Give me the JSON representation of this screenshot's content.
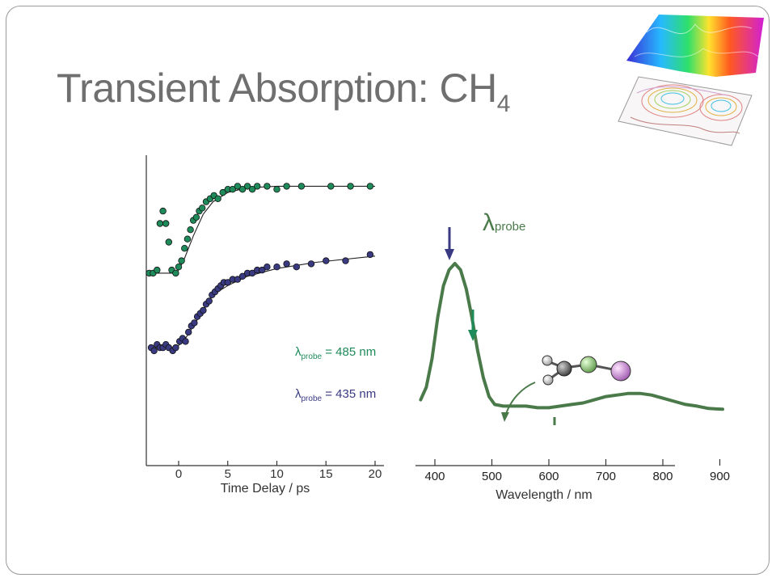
{
  "slide": {
    "title_main": "Transient Absorption: CH",
    "title_sub": "4"
  },
  "chart_data": [
    {
      "type": "scatter",
      "xlabel": "Time Delay / ps",
      "x_ticks": [
        "0",
        "5",
        "10",
        "15",
        "20"
      ],
      "xlim": [
        -3,
        20.5
      ],
      "series": [
        {
          "name": "λprobe = 485 nm",
          "label_symbol": "λ",
          "label_sub": "probe",
          "label_rest": " = 485 nm",
          "color": "#1f8a5a",
          "points": [
            [
              -3,
              0.62
            ],
            [
              -2.6,
              0.62
            ],
            [
              -2.2,
              0.63
            ],
            [
              -1.9,
              0.78
            ],
            [
              -1.6,
              0.82
            ],
            [
              -1.3,
              0.78
            ],
            [
              -1.0,
              0.72
            ],
            [
              -0.7,
              0.63
            ],
            [
              -0.3,
              0.62
            ],
            [
              0,
              0.64
            ],
            [
              0.3,
              0.66
            ],
            [
              0.6,
              0.7
            ],
            [
              0.9,
              0.73
            ],
            [
              1.2,
              0.76
            ],
            [
              1.5,
              0.79
            ],
            [
              1.8,
              0.8
            ],
            [
              2.1,
              0.82
            ],
            [
              2.4,
              0.83
            ],
            [
              2.8,
              0.85
            ],
            [
              3.2,
              0.86
            ],
            [
              3.6,
              0.87
            ],
            [
              4.0,
              0.86
            ],
            [
              4.5,
              0.88
            ],
            [
              5.0,
              0.89
            ],
            [
              5.5,
              0.89
            ],
            [
              6.0,
              0.9
            ],
            [
              6.5,
              0.89
            ],
            [
              7.0,
              0.9
            ],
            [
              7.5,
              0.89
            ],
            [
              8.0,
              0.9
            ],
            [
              9.0,
              0.9
            ],
            [
              10.0,
              0.89
            ],
            [
              11.0,
              0.9
            ],
            [
              12.5,
              0.9
            ],
            [
              15.5,
              0.9
            ],
            [
              17.5,
              0.9
            ],
            [
              19.5,
              0.9
            ]
          ],
          "fit": [
            [
              -3,
              0.62
            ],
            [
              -0.2,
              0.62
            ],
            [
              0.5,
              0.66
            ],
            [
              1.5,
              0.74
            ],
            [
              2.5,
              0.81
            ],
            [
              3.5,
              0.85
            ],
            [
              5,
              0.88
            ],
            [
              7,
              0.895
            ],
            [
              10,
              0.9
            ],
            [
              20,
              0.9
            ]
          ]
        },
        {
          "name": "λprobe = 435 nm",
          "label_symbol": "λ",
          "label_sub": "probe",
          "label_rest": " = 435 nm",
          "color": "#3a3a82",
          "points": [
            [
              -2.8,
              0.38
            ],
            [
              -2.5,
              0.37
            ],
            [
              -2.2,
              0.39
            ],
            [
              -1.9,
              0.38
            ],
            [
              -1.6,
              0.38
            ],
            [
              -1.3,
              0.39
            ],
            [
              -1.0,
              0.38
            ],
            [
              -0.6,
              0.37
            ],
            [
              -0.3,
              0.38
            ],
            [
              0.1,
              0.4
            ],
            [
              0.4,
              0.41
            ],
            [
              0.7,
              0.4
            ],
            [
              1.0,
              0.43
            ],
            [
              1.3,
              0.45
            ],
            [
              1.6,
              0.46
            ],
            [
              1.9,
              0.48
            ],
            [
              2.2,
              0.49
            ],
            [
              2.5,
              0.5
            ],
            [
              2.8,
              0.52
            ],
            [
              3.1,
              0.53
            ],
            [
              3.4,
              0.55
            ],
            [
              3.7,
              0.56
            ],
            [
              4.0,
              0.57
            ],
            [
              4.3,
              0.58
            ],
            [
              4.6,
              0.59
            ],
            [
              5.0,
              0.59
            ],
            [
              5.5,
              0.6
            ],
            [
              6.0,
              0.6
            ],
            [
              6.5,
              0.61
            ],
            [
              7.0,
              0.62
            ],
            [
              7.5,
              0.62
            ],
            [
              8.0,
              0.63
            ],
            [
              8.5,
              0.63
            ],
            [
              9.0,
              0.64
            ],
            [
              10.0,
              0.64
            ],
            [
              11.0,
              0.65
            ],
            [
              12.0,
              0.64
            ],
            [
              13.5,
              0.65
            ],
            [
              15.0,
              0.66
            ],
            [
              17.0,
              0.66
            ],
            [
              19.5,
              0.68
            ]
          ],
          "fit": [
            [
              -3,
              0.38
            ],
            [
              -0.3,
              0.38
            ],
            [
              0.5,
              0.4
            ],
            [
              1.5,
              0.45
            ],
            [
              2.5,
              0.5
            ],
            [
              3.5,
              0.55
            ],
            [
              5,
              0.58
            ],
            [
              7,
              0.61
            ],
            [
              10,
              0.635
            ],
            [
              14,
              0.655
            ],
            [
              20,
              0.675
            ]
          ]
        }
      ],
      "annotations": []
    },
    {
      "type": "line",
      "xlabel": "Wavelength / nm",
      "x_ticks": [
        "400",
        "500",
        "600",
        "700",
        "800",
        "900"
      ],
      "xlim": [
        375,
        910
      ],
      "color": "#4a7a4a",
      "series": [
        {
          "points": [
            [
              375,
              0.14
            ],
            [
              385,
              0.22
            ],
            [
              395,
              0.4
            ],
            [
              405,
              0.66
            ],
            [
              415,
              0.86
            ],
            [
              425,
              0.96
            ],
            [
              435,
              1.0
            ],
            [
              445,
              0.96
            ],
            [
              455,
              0.84
            ],
            [
              465,
              0.66
            ],
            [
              475,
              0.45
            ],
            [
              485,
              0.28
            ],
            [
              495,
              0.16
            ],
            [
              505,
              0.11
            ],
            [
              520,
              0.1
            ],
            [
              540,
              0.1
            ],
            [
              560,
              0.1
            ],
            [
              580,
              0.09
            ],
            [
              600,
              0.09
            ],
            [
              620,
              0.1
            ],
            [
              640,
              0.11
            ],
            [
              660,
              0.12
            ],
            [
              680,
              0.14
            ],
            [
              700,
              0.16
            ],
            [
              720,
              0.17
            ],
            [
              740,
              0.18
            ],
            [
              760,
              0.18
            ],
            [
              780,
              0.17
            ],
            [
              800,
              0.15
            ],
            [
              820,
              0.13
            ],
            [
              840,
              0.11
            ],
            [
              860,
              0.1
            ],
            [
              880,
              0.085
            ],
            [
              905,
              0.08
            ]
          ]
        }
      ],
      "annotations": [
        {
          "text_symbol": "λ",
          "text_sub": "probe"
        }
      ]
    }
  ]
}
